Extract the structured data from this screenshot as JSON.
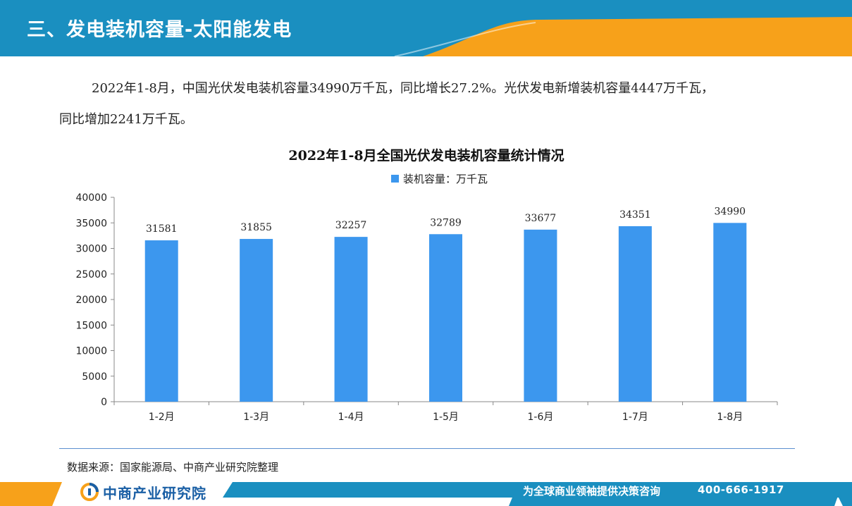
{
  "header": {
    "title": "三、发电装机容量-太阳能发电"
  },
  "summary": {
    "line1": "2022年1-8月，中国光伏发电装机容量34990万千瓦，同比增长27.2%。光伏发电新增装机容量4447万千瓦，",
    "line2": "同比增加2241万千瓦。"
  },
  "colors": {
    "bar": "#3c97ee",
    "header_blue": "#1a8fc0",
    "header_orange": "#f7a11a",
    "footer_blue": "#1a8fc0"
  },
  "chart_data": {
    "type": "bar",
    "title": "2022年1-8月全国光伏发电装机容量统计情况",
    "categories": [
      "1-2月",
      "1-3月",
      "1-4月",
      "1-5月",
      "1-6月",
      "1-7月",
      "1-8月"
    ],
    "series": [
      {
        "name": "装机容量：万千瓦",
        "values": [
          31581,
          31855,
          32257,
          32789,
          33677,
          34351,
          34990
        ]
      }
    ],
    "ylim": [
      0,
      40000
    ],
    "yticks": [
      0,
      5000,
      10000,
      15000,
      20000,
      25000,
      30000,
      35000,
      40000
    ],
    "legend_position": "top-center",
    "grid": false,
    "data_labels": true
  },
  "source": {
    "text": "数据来源：国家能源局、中商产业研究院整理"
  },
  "footer": {
    "logo_text": "中商产业研究院",
    "logo_icon": "askci-logo-icon",
    "slogan": "为全球商业领袖提供决策咨询",
    "phone": "400-666-1917"
  }
}
